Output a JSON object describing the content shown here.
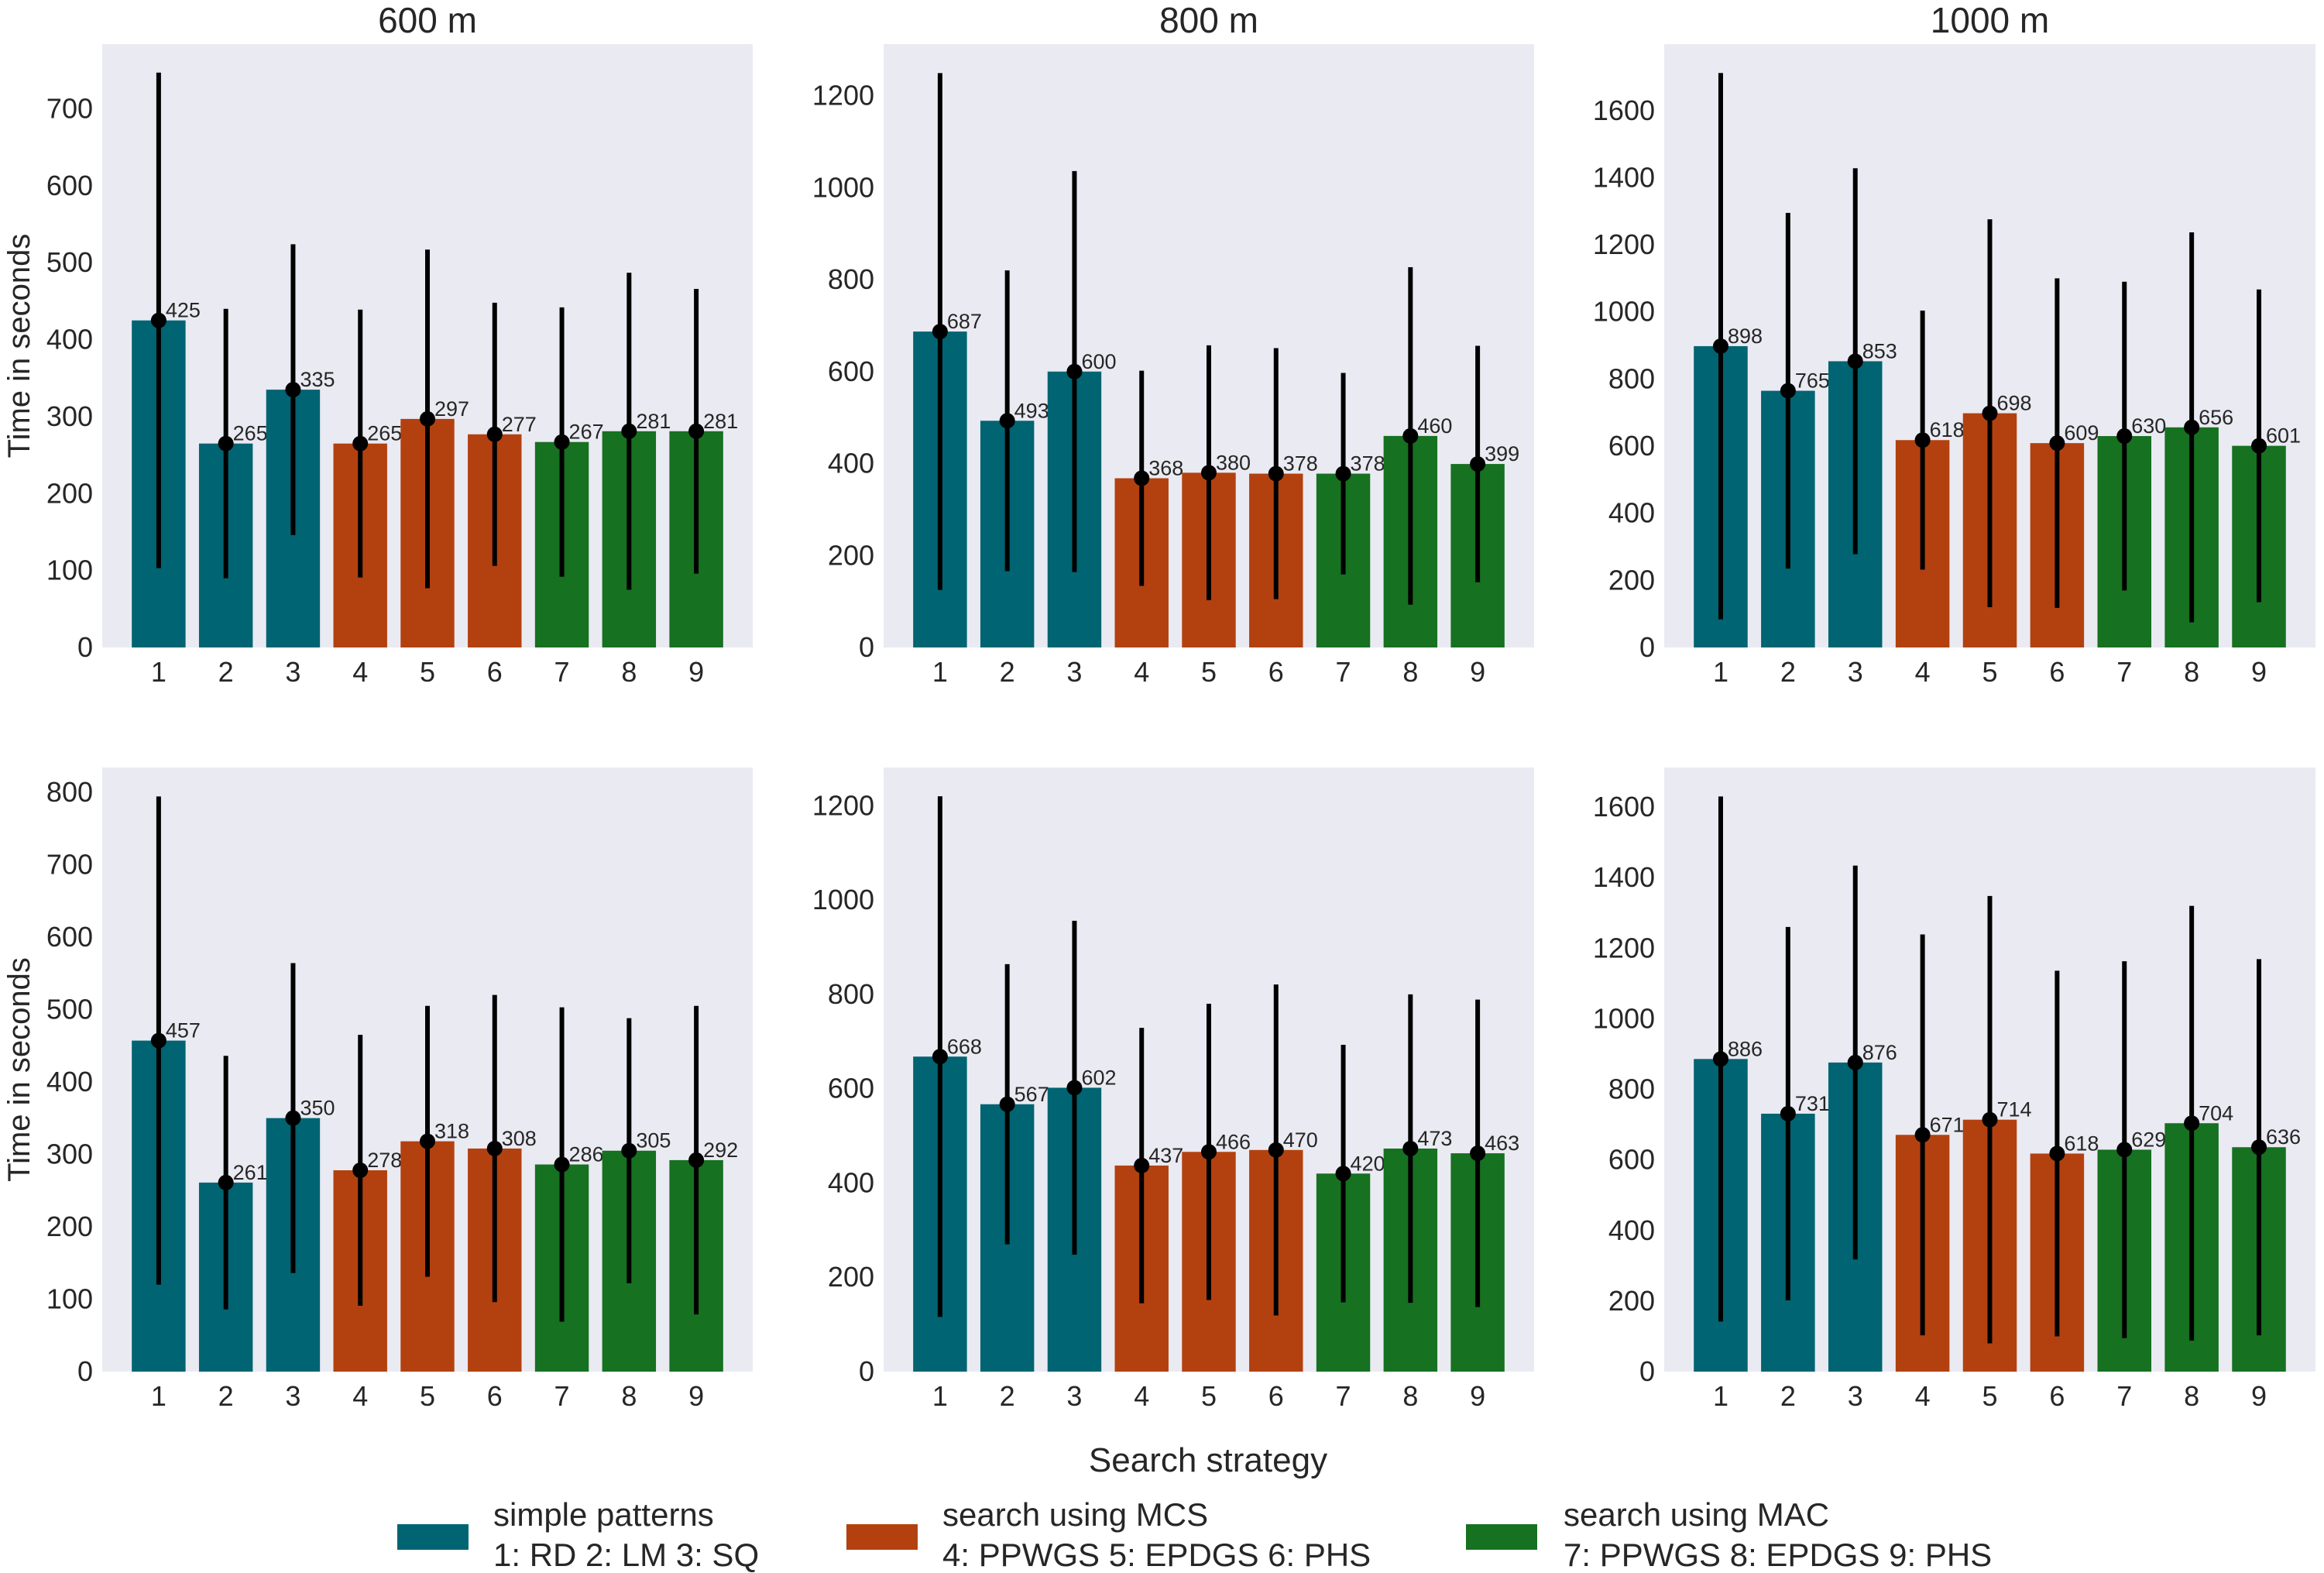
{
  "chart_data": {
    "type": "bar",
    "xlabel": "Search strategy",
    "ylabel": "Time in seconds",
    "categories": [
      "1",
      "2",
      "3",
      "4",
      "5",
      "6",
      "7",
      "8",
      "9"
    ],
    "group_colors": [
      "#006472",
      "#b3410f",
      "#167120"
    ],
    "bar_groups": [
      0,
      0,
      0,
      1,
      1,
      1,
      2,
      2,
      2
    ],
    "background": "#eaeaf2",
    "grid": false,
    "legend_placement": "bottom-center",
    "legend": [
      {
        "title": "simple patterns",
        "detail": "1: RD 2: LM 3: SQ",
        "color": "#006472"
      },
      {
        "title": "search using MCS",
        "detail": "4: PPWGS 5: EPDGS 6: PHS",
        "color": "#b3410f"
      },
      {
        "title": "search using MAC",
        "detail": "7: PPWGS 8: EPDGS 9: PHS",
        "color": "#167120"
      }
    ],
    "panels": [
      {
        "title": "600 m",
        "row": 0,
        "col": 0,
        "ylim": [
          0,
          784
        ],
        "yticks": [
          0,
          100,
          200,
          300,
          400,
          500,
          600,
          700
        ],
        "values": [
          425,
          265,
          335,
          265,
          297,
          277,
          267,
          281,
          281
        ],
        "error": [
          322,
          175,
          189,
          174,
          220,
          171,
          175,
          206,
          185
        ]
      },
      {
        "title": "800 m",
        "row": 0,
        "col": 1,
        "ylim": [
          0,
          1312
        ],
        "yticks": [
          0,
          200,
          400,
          600,
          800,
          1000,
          1200
        ],
        "values": [
          687,
          493,
          600,
          368,
          380,
          378,
          378,
          460,
          399
        ],
        "error": [
          562,
          327,
          436,
          234,
          277,
          273,
          219,
          367,
          257
        ]
      },
      {
        "title": "1000 m",
        "row": 0,
        "col": 2,
        "ylim": [
          0,
          1798
        ],
        "yticks": [
          0,
          200,
          400,
          600,
          800,
          1000,
          1200,
          1400,
          1600
        ],
        "values": [
          898,
          765,
          853,
          618,
          698,
          609,
          630,
          656,
          601
        ],
        "error": [
          814,
          530,
          575,
          386,
          578,
          491,
          460,
          581,
          466
        ]
      },
      {
        "title": "",
        "row": 1,
        "col": 0,
        "ylim": [
          0,
          834
        ],
        "yticks": [
          0,
          100,
          200,
          300,
          400,
          500,
          600,
          700,
          800
        ],
        "values": [
          457,
          261,
          350,
          278,
          318,
          308,
          286,
          305,
          292
        ],
        "error": [
          337,
          175,
          214,
          187,
          187,
          212,
          217,
          183,
          213
        ]
      },
      {
        "title": "",
        "row": 1,
        "col": 1,
        "ylim": [
          0,
          1281
        ],
        "yticks": [
          0,
          200,
          400,
          600,
          800,
          1000,
          1200
        ],
        "values": [
          668,
          567,
          602,
          437,
          466,
          470,
          420,
          473,
          463
        ],
        "error": [
          552,
          297,
          354,
          292,
          314,
          351,
          273,
          327,
          326
        ]
      },
      {
        "title": "",
        "row": 1,
        "col": 2,
        "ylim": [
          0,
          1712
        ],
        "yticks": [
          0,
          200,
          400,
          600,
          800,
          1000,
          1200,
          1400,
          1600
        ],
        "values": [
          886,
          731,
          876,
          671,
          714,
          618,
          629,
          704,
          636
        ],
        "error": [
          744,
          529,
          558,
          568,
          634,
          518,
          534,
          616,
          533
        ]
      }
    ]
  }
}
